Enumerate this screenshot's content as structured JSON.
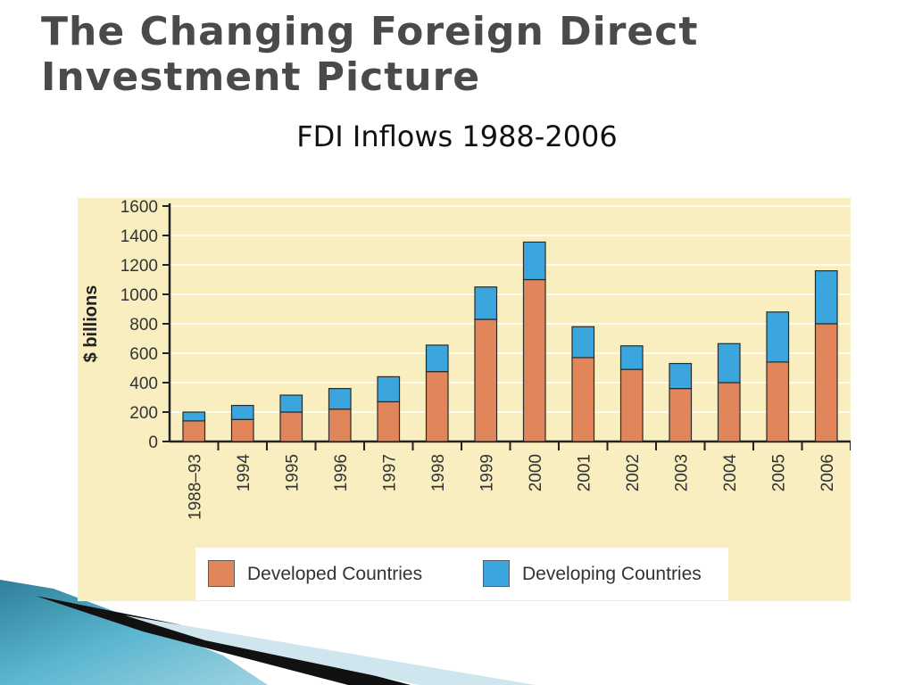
{
  "slide": {
    "title": "The Changing Foreign Direct\nInvestment Picture",
    "subtitle": "FDI Inflows 1988-2006"
  },
  "colors": {
    "panel_background": "#f8eebf",
    "developed": "#e0865a",
    "developing": "#3ba6dd"
  },
  "chart_data": {
    "type": "bar",
    "stacked": true,
    "title": "",
    "xlabel": "",
    "ylabel": "$ billions",
    "ylim": [
      0,
      1600
    ],
    "yticks": [
      0,
      200,
      400,
      600,
      800,
      1000,
      1200,
      1400,
      1600
    ],
    "grid": true,
    "legend_position": "bottom",
    "categories": [
      "1988–93",
      "1994",
      "1995",
      "1996",
      "1997",
      "1998",
      "1999",
      "2000",
      "2001",
      "2002",
      "2003",
      "2004",
      "2005",
      "2006"
    ],
    "series": [
      {
        "name": "Developed Countries",
        "color": "#e0865a",
        "values": [
          140,
          150,
          200,
          220,
          270,
          475,
          830,
          1100,
          570,
          490,
          360,
          400,
          540,
          800
        ]
      },
      {
        "name": "Developing Countries",
        "color": "#3ba6dd",
        "values": [
          60,
          95,
          115,
          140,
          170,
          180,
          220,
          255,
          210,
          160,
          170,
          265,
          340,
          360
        ]
      }
    ]
  }
}
